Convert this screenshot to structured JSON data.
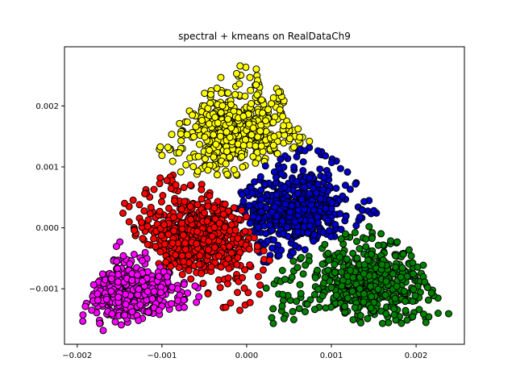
{
  "chart_data": {
    "type": "scatter",
    "title": "spectral + kmeans on RealDataCh9",
    "xlabel": "",
    "ylabel": "",
    "xlim": [
      -0.00215,
      0.00257
    ],
    "ylim": [
      -0.00191,
      0.00297
    ],
    "x_ticks": [
      -0.002,
      -0.001,
      0.0,
      0.001,
      0.002
    ],
    "x_tick_labels": [
      "−0.002",
      "−0.001",
      "0.000",
      "0.001",
      "0.002"
    ],
    "y_ticks": [
      -0.001,
      0.0,
      0.001,
      0.002
    ],
    "y_tick_labels": [
      "−0.001",
      "0.000",
      "0.001",
      "0.002"
    ],
    "grid": false,
    "legend": "none",
    "marker_edge_color": "#000000",
    "clusters": [
      {
        "color": "#ffff00",
        "center": [
          -0.00015,
          0.00158
        ],
        "count": 620,
        "spread": [
          0.00045,
          0.00045
        ],
        "polygon": [
          [
            -0.0011,
            0.00118
          ],
          [
            -0.0006,
            0.0021
          ],
          [
            -0.0002,
            0.0027
          ],
          [
            0.0002,
            0.0026
          ],
          [
            0.0006,
            0.0019
          ],
          [
            0.0008,
            0.0014
          ],
          [
            0.0003,
            0.0011
          ],
          [
            -0.0002,
            0.0008
          ],
          [
            -0.0008,
            0.0009
          ]
        ]
      },
      {
        "color": "#0000c8",
        "center": [
          0.00055,
          0.00025
        ],
        "count": 560,
        "spread": [
          0.0005,
          0.0005
        ],
        "polygon": [
          [
            -0.0002,
            0.0006
          ],
          [
            0.0003,
            0.0011
          ],
          [
            0.0008,
            0.0014
          ],
          [
            0.0011,
            0.0011
          ],
          [
            0.0015,
            0.0005
          ],
          [
            0.0016,
            0.0002
          ],
          [
            0.0011,
            -0.0001
          ],
          [
            0.0005,
            -0.0005
          ],
          [
            0.0002,
            -0.0006
          ],
          [
            0.0001,
            -0.0002
          ],
          [
            -0.0002,
            0.0004
          ]
        ]
      },
      {
        "color": "#ff0000",
        "center": [
          -0.00055,
          -0.00015
        ],
        "count": 620,
        "spread": [
          0.0005,
          0.0005
        ],
        "polygon": [
          [
            -0.0015,
            0.00045
          ],
          [
            -0.0014,
            0.0004
          ],
          [
            -0.001,
            0.0009
          ],
          [
            -0.0006,
            0.00085
          ],
          [
            -0.0002,
            0.0006
          ],
          [
            0.0,
            0.0002
          ],
          [
            0.0003,
            -0.0006
          ],
          [
            0.0002,
            -0.0011
          ],
          [
            -0.0001,
            -0.0014
          ],
          [
            -0.0004,
            -0.0013
          ],
          [
            -0.0007,
            -0.0008
          ],
          [
            -0.0011,
            -0.0006
          ],
          [
            -0.0014,
            -0.0001
          ]
        ]
      },
      {
        "color": "#ff00ff",
        "center": [
          -0.0014,
          -0.00105
        ],
        "count": 420,
        "spread": [
          0.00045,
          0.0004
        ],
        "polygon": [
          [
            -0.002,
            -0.0015
          ],
          [
            -0.0018,
            -0.0009
          ],
          [
            -0.0015,
            -0.0002
          ],
          [
            -0.0013,
            -0.0001
          ],
          [
            -0.0011,
            -0.0006
          ],
          [
            -0.0007,
            -0.0008
          ],
          [
            -0.0004,
            -0.0011
          ],
          [
            -0.0007,
            -0.0013
          ],
          [
            -0.0012,
            -0.0015
          ],
          [
            -0.0017,
            -0.0017
          ]
        ]
      },
      {
        "color": "#008000",
        "center": [
          0.00145,
          -0.0009
        ],
        "count": 560,
        "spread": [
          0.00055,
          0.00045
        ],
        "polygon": [
          [
            0.0002,
            -0.0009
          ],
          [
            0.0005,
            -0.0005
          ],
          [
            0.0011,
            -0.0001
          ],
          [
            0.0016,
            0.0002
          ],
          [
            0.0018,
            -0.0002
          ],
          [
            0.0021,
            -0.0006
          ],
          [
            0.0024,
            -0.0014
          ],
          [
            0.0021,
            -0.0016
          ],
          [
            0.0015,
            -0.0016
          ],
          [
            0.0008,
            -0.0015
          ],
          [
            0.0003,
            -0.0016
          ]
        ]
      }
    ]
  }
}
